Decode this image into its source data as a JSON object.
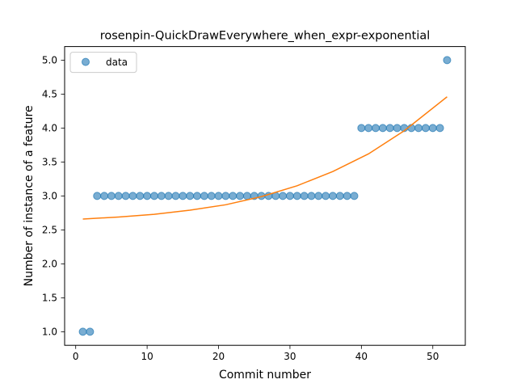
{
  "chart_data": {
    "type": "scatter",
    "title": "rosenpin-QuickDrawEverywhere_when_expr-exponential",
    "xlabel": "Commit number",
    "ylabel": "Number of instance of a feature",
    "xlim": [
      -1.55,
      54.55
    ],
    "ylim": [
      0.8,
      5.2
    ],
    "xticks": [
      0,
      10,
      20,
      30,
      40,
      50
    ],
    "yticks": [
      1.0,
      1.5,
      2.0,
      2.5,
      3.0,
      3.5,
      4.0,
      4.5,
      5.0
    ],
    "xtick_labels": [
      "0",
      "10",
      "20",
      "30",
      "40",
      "50"
    ],
    "ytick_labels": [
      "1.0",
      "1.5",
      "2.0",
      "2.5",
      "3.0",
      "3.5",
      "4.0",
      "4.5",
      "5.0"
    ],
    "grid": false,
    "legend": {
      "placement": "top-left",
      "entries": [
        "data"
      ]
    },
    "series": [
      {
        "name": "data",
        "kind": "scatter",
        "color": "#1f77b4",
        "x": [
          1,
          2,
          3,
          4,
          5,
          6,
          7,
          8,
          9,
          10,
          11,
          12,
          13,
          14,
          15,
          16,
          17,
          18,
          19,
          20,
          21,
          22,
          23,
          24,
          25,
          26,
          27,
          28,
          29,
          30,
          31,
          32,
          33,
          34,
          35,
          36,
          37,
          38,
          39,
          40,
          41,
          42,
          43,
          44,
          45,
          46,
          47,
          48,
          49,
          50,
          51,
          52
        ],
        "y": [
          1,
          1,
          3,
          3,
          3,
          3,
          3,
          3,
          3,
          3,
          3,
          3,
          3,
          3,
          3,
          3,
          3,
          3,
          3,
          3,
          3,
          3,
          3,
          3,
          3,
          3,
          3,
          3,
          3,
          3,
          3,
          3,
          3,
          3,
          3,
          3,
          3,
          3,
          3,
          4,
          4,
          4,
          4,
          4,
          4,
          4,
          4,
          4,
          4,
          4,
          4,
          5
        ]
      },
      {
        "kind": "line",
        "color": "#ff7f0e",
        "x": [
          1,
          6,
          11,
          16,
          21,
          26,
          31,
          36,
          41,
          46,
          52
        ],
        "y": [
          2.66,
          2.69,
          2.73,
          2.79,
          2.87,
          2.99,
          3.15,
          3.36,
          3.62,
          3.96,
          4.46
        ]
      }
    ]
  }
}
